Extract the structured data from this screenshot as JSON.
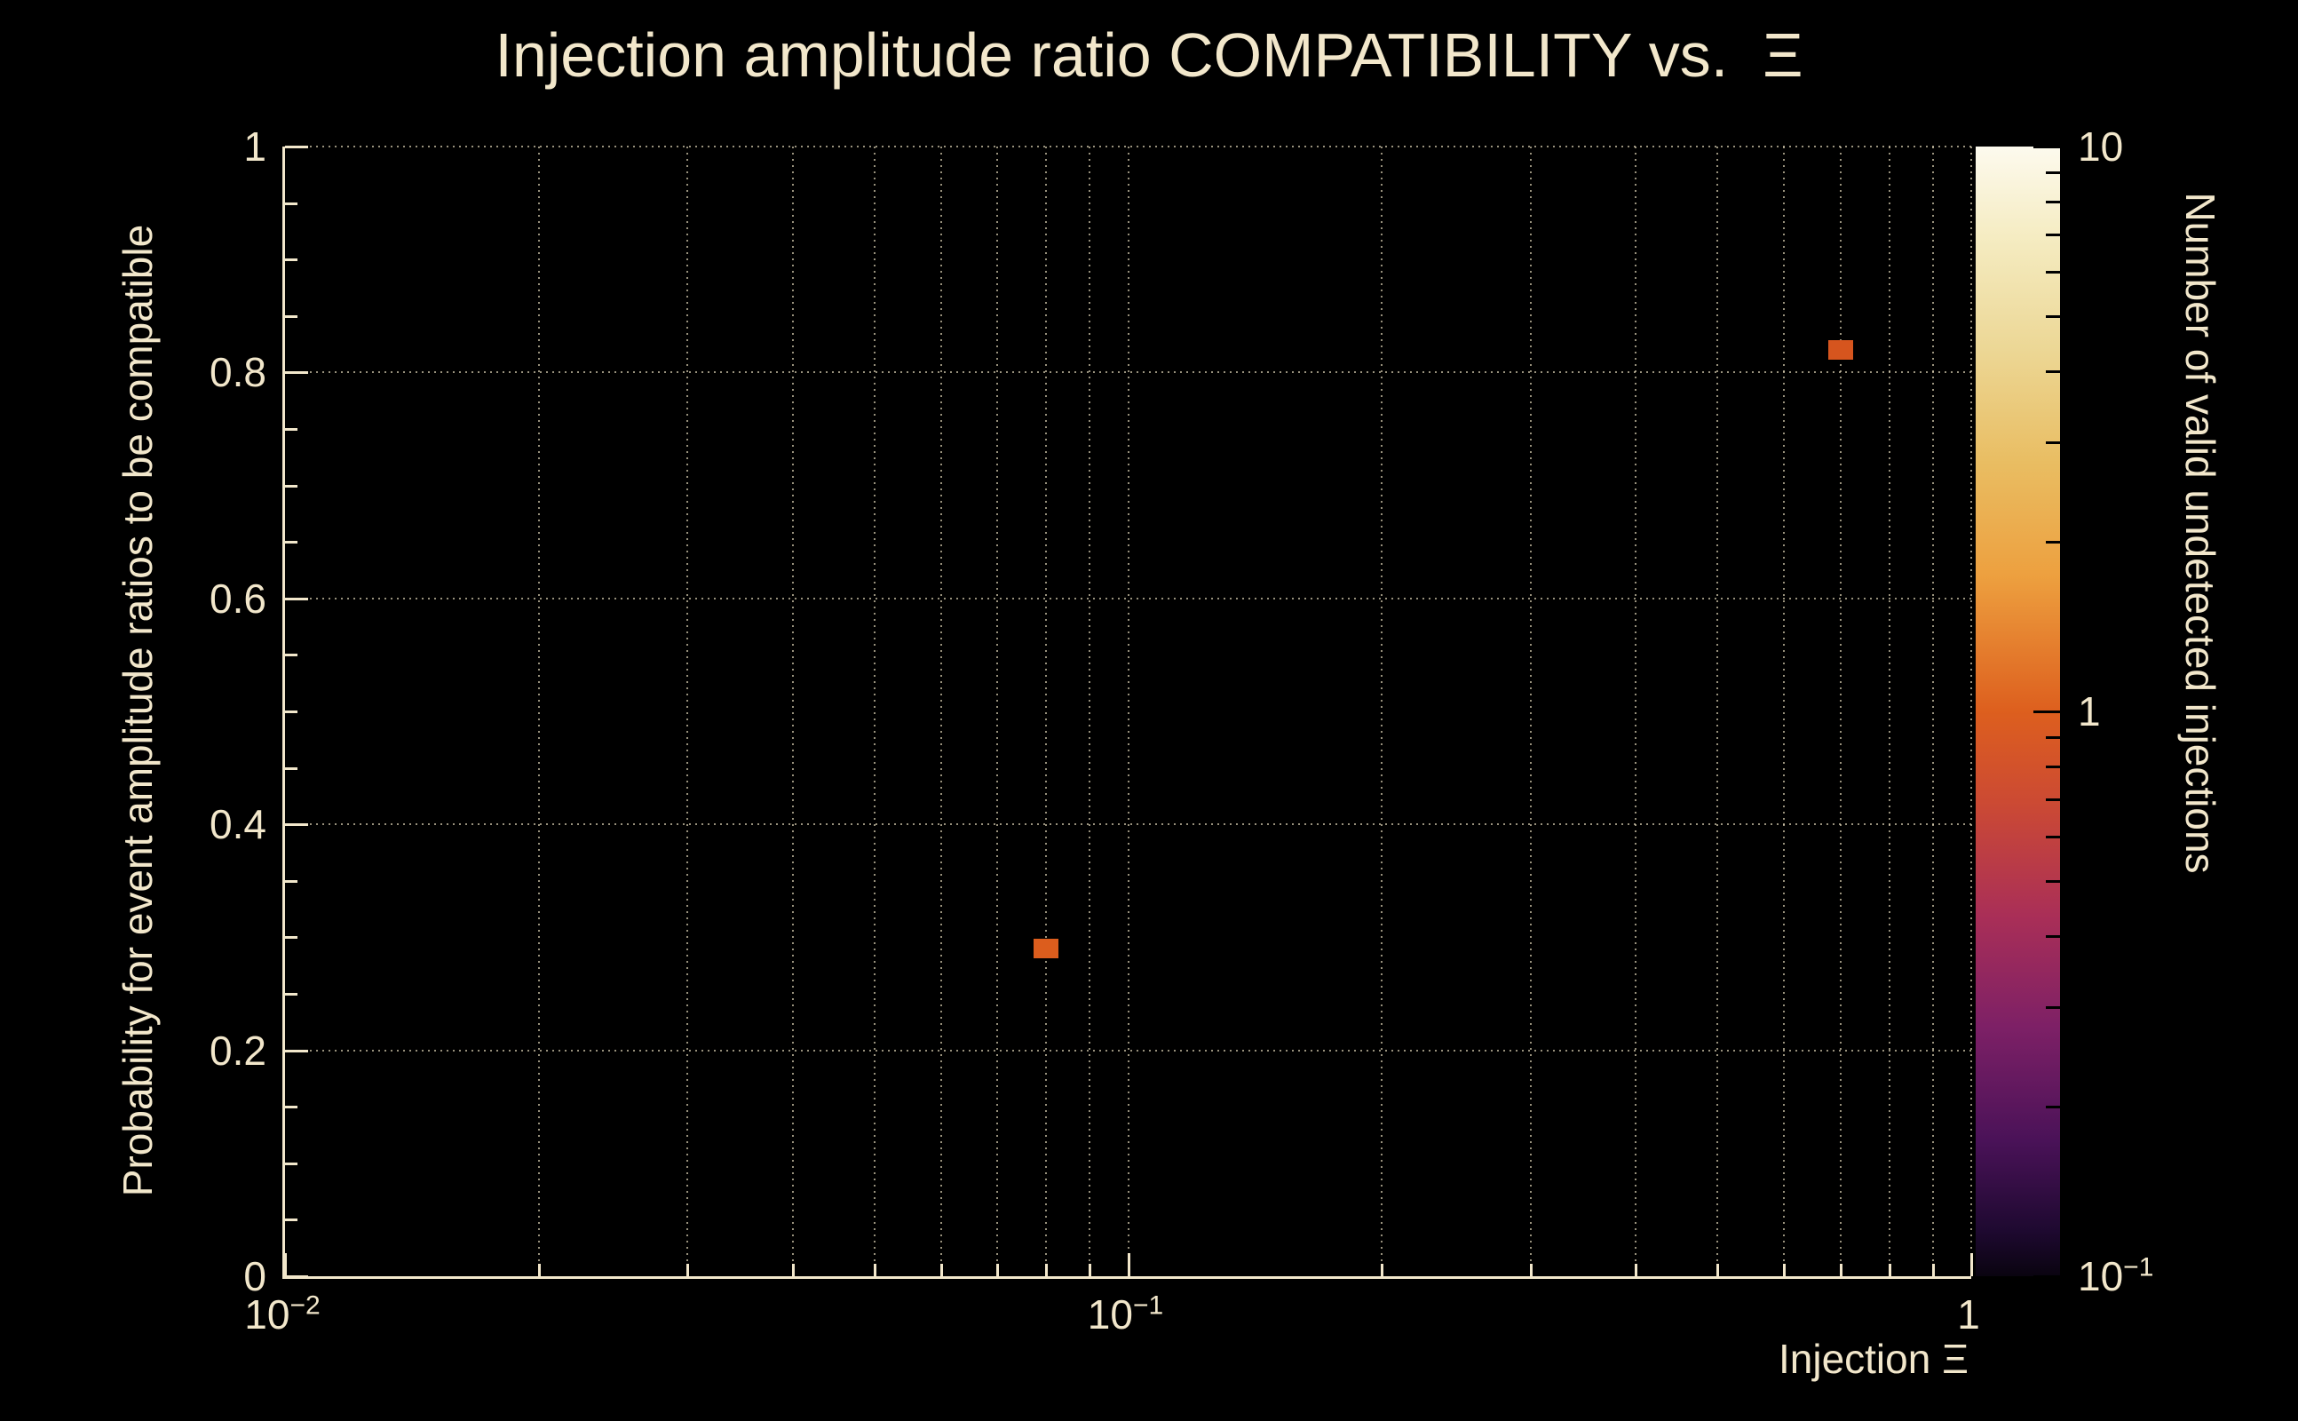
{
  "colors": {
    "background": "#000000",
    "foreground": "#f2e7cb",
    "grid": "#d9cfb2",
    "tick_dark": "#000000"
  },
  "chart_data": {
    "type": "heatmap",
    "title": "Injection amplitude ratio COMPATIBILITY vs.  Ξ",
    "xlabel": "Injection Ξ",
    "ylabel": "Probability for event amplitude ratios to be compatible",
    "colorbar_label": "Number of valid undetected injections",
    "x_scale": "log",
    "xlim": [
      0.01,
      1
    ],
    "y_scale": "linear",
    "ylim": [
      0,
      1
    ],
    "z_scale": "log",
    "zlim": [
      0.1,
      10
    ],
    "grid": "dotted",
    "x_ticks": [
      {
        "value": 0.01,
        "base": "10",
        "exp": "−2"
      },
      {
        "value": 0.1,
        "base": "10",
        "exp": "−1"
      },
      {
        "value": 1,
        "base": "1",
        "exp": ""
      }
    ],
    "y_ticks": [
      0,
      0.2,
      0.4,
      0.6,
      0.8,
      1
    ],
    "y_grid": [
      0.2,
      0.4,
      0.6,
      0.8,
      1
    ],
    "points": [
      {
        "x": 0.08,
        "y": 0.29,
        "value": 1,
        "color": "#dc5d1d"
      },
      {
        "x": 0.7,
        "y": 0.82,
        "value": 1,
        "color": "#d6551e"
      }
    ],
    "colorbar": {
      "ticks": [
        {
          "value": 10,
          "base": "10",
          "exp": ""
        },
        {
          "value": 1,
          "base": "1",
          "exp": ""
        },
        {
          "value": 0.1,
          "base": "10",
          "exp": "−1"
        }
      ],
      "stops": [
        {
          "pos": 0,
          "color": "#fdfaee"
        },
        {
          "pos": 8,
          "color": "#f5ecc2"
        },
        {
          "pos": 18,
          "color": "#ecd795"
        },
        {
          "pos": 28,
          "color": "#e9bd62"
        },
        {
          "pos": 38,
          "color": "#eda03f"
        },
        {
          "pos": 50,
          "color": "#dd5f1e"
        },
        {
          "pos": 58,
          "color": "#cc4a33"
        },
        {
          "pos": 68,
          "color": "#aa2f57"
        },
        {
          "pos": 78,
          "color": "#7d2066"
        },
        {
          "pos": 88,
          "color": "#4a1258"
        },
        {
          "pos": 96,
          "color": "#1e0930"
        },
        {
          "pos": 100,
          "color": "#0a0410"
        }
      ]
    }
  }
}
